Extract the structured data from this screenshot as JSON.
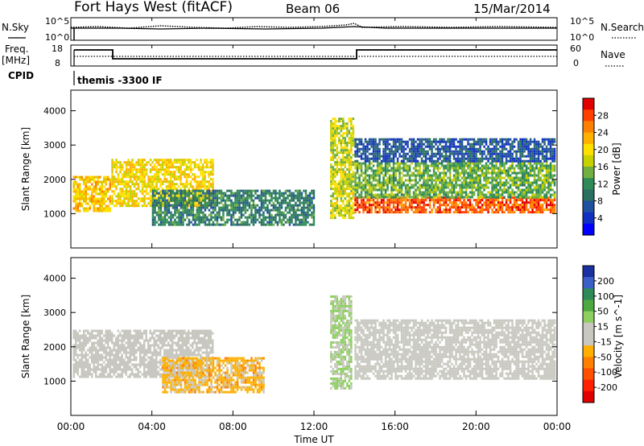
{
  "header": {
    "station": "Fort Hays West (fitACF)",
    "beam": "Beam 06",
    "date": "15/Mar/2014"
  },
  "top_panels": {
    "nsky_label": "N.Sky",
    "nsearch_label": "N.Search",
    "freq_label_line1": "Freq.",
    "freq_label_line2": "[MHz]",
    "nave_label": "Nave",
    "cpid_label": "CPID",
    "cpid_value": "themis -3300 IF",
    "noise_ticks_left": [
      "10^5",
      "10^0"
    ],
    "noise_ticks_right": [
      "10^5",
      "10^0"
    ],
    "freq_ticks": [
      "18",
      "8"
    ],
    "nave_ticks": [
      "60",
      "0"
    ]
  },
  "power_panel": {
    "ylabel": "Slant Range [km]",
    "colorbar_label": "Power [dB]",
    "colorbar_ticks": [
      "28",
      "24",
      "20",
      "16",
      "12",
      "8",
      "4"
    ],
    "colorbar_colors": [
      "#e00000",
      "#ff4000",
      "#ff8000",
      "#ffb000",
      "#ffe000",
      "#c8d000",
      "#70b040",
      "#2e8b57",
      "#2a7060",
      "#2050a0",
      "#1030c0",
      "#0000ff"
    ]
  },
  "velocity_panel": {
    "ylabel": "Slant Range [km]",
    "colorbar_label": "Velocity [m s^-1]",
    "colorbar_ticks": [
      "200",
      "100",
      "50",
      "15",
      "-15",
      "-50",
      "-100",
      "-200"
    ],
    "colorbar_colors": [
      "#1a2fa0",
      "#3a60c8",
      "#2e8b57",
      "#4ca840",
      "#8ed060",
      "#c8c8c0",
      "#c8c8c0",
      "#ffb000",
      "#ff8000",
      "#ff5000",
      "#ff2000",
      "#e00000"
    ]
  },
  "x_axis": {
    "label": "Time UT",
    "ticks": [
      "00:00",
      "04:00",
      "08:00",
      "12:00",
      "16:00",
      "20:00",
      "00:00"
    ]
  },
  "chart_data": [
    {
      "type": "line",
      "title": "Fort Hays West (fitACF) Beam 06 15/Mar/2014",
      "name": "frequency",
      "ylabel": "Freq. [MHz]",
      "ylim": [
        8,
        18
      ],
      "x": [
        0.0,
        0.05,
        2.0,
        2.05,
        14.0,
        14.05,
        24.0
      ],
      "y": [
        15,
        15,
        10.8,
        10.8,
        10.8,
        15,
        15
      ]
    },
    {
      "type": "heatmap",
      "title": "Power [dB]",
      "x_range_hours": [
        0,
        24
      ],
      "ylim": [
        0,
        4600
      ],
      "yticks": [
        1000,
        2000,
        3000,
        4000
      ],
      "zlim": [
        0,
        32
      ],
      "regions": [
        {
          "t0": 0.1,
          "t1": 1.9,
          "r0": 1100,
          "r1": 2100,
          "power": 22
        },
        {
          "t0": 2.0,
          "t1": 7.0,
          "r0": 1200,
          "r1": 2600,
          "power": 20
        },
        {
          "t0": 4.0,
          "t1": 12.0,
          "r0": 700,
          "r1": 1700,
          "power": 10
        },
        {
          "t0": 12.8,
          "t1": 13.9,
          "r0": 900,
          "r1": 3800,
          "power": 18
        },
        {
          "t0": 14.0,
          "t1": 23.9,
          "r0": 1050,
          "r1": 1500,
          "power": 28
        },
        {
          "t0": 14.0,
          "t1": 23.9,
          "r0": 1500,
          "r1": 2500,
          "power": 14
        },
        {
          "t0": 14.0,
          "t1": 23.9,
          "r0": 2500,
          "r1": 3200,
          "power": 6
        }
      ]
    },
    {
      "type": "heatmap",
      "title": "Velocity [m s^-1]",
      "x_range_hours": [
        0,
        24
      ],
      "ylim": [
        0,
        4600
      ],
      "yticks": [
        1000,
        2000,
        3000,
        4000
      ],
      "zlim": [
        -200,
        200
      ],
      "regions": [
        {
          "t0": 0.1,
          "t1": 7.0,
          "r0": 1100,
          "r1": 2500,
          "velocity": 0
        },
        {
          "t0": 4.5,
          "t1": 9.5,
          "r0": 700,
          "r1": 1700,
          "velocity": -50
        },
        {
          "t0": 12.8,
          "t1": 13.8,
          "r0": 800,
          "r1": 3500,
          "velocity": 40
        },
        {
          "t0": 14.0,
          "t1": 23.9,
          "r0": 1050,
          "r1": 2800,
          "velocity": 0
        }
      ]
    }
  ]
}
